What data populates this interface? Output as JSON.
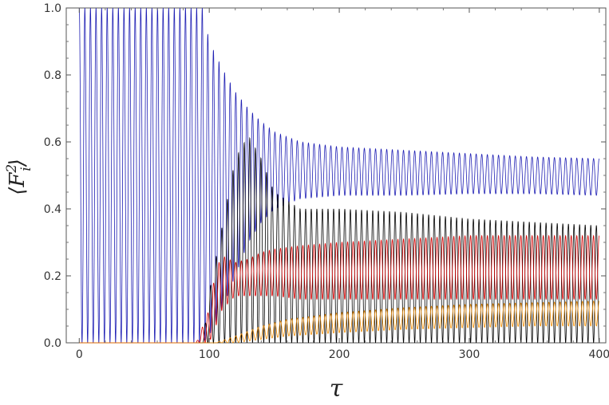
{
  "chart_data": {
    "type": "line",
    "xlabel": "τ",
    "ylabel": "⟨F_i^2⟩",
    "xlim": [
      -10,
      405
    ],
    "ylim": [
      0,
      1.0
    ],
    "x_ticks": [
      0,
      100,
      200,
      300,
      400
    ],
    "x_tick_labels": [
      "0",
      "100",
      "200",
      "300",
      "400"
    ],
    "y_ticks": [
      0,
      0.2,
      0.4,
      0.6,
      0.8,
      1.0
    ],
    "y_tick_labels": [
      "0.0",
      "0.2",
      "0.4",
      "0.6",
      "0.8",
      "1.0"
    ],
    "grid": false,
    "legend": "none",
    "oscillation_period": 4.3,
    "series": [
      {
        "color": "#1f1fb4",
        "envelope_x": [
          0,
          95,
          100,
          110,
          120,
          130,
          140,
          150,
          170,
          200,
          250,
          300,
          350,
          400
        ],
        "envelope_upper": [
          1.0,
          1.0,
          0.9,
          0.82,
          0.75,
          0.7,
          0.66,
          0.63,
          0.6,
          0.585,
          0.575,
          0.565,
          0.555,
          0.55
        ],
        "envelope_lower": [
          0.0,
          0.0,
          0.02,
          0.1,
          0.2,
          0.3,
          0.36,
          0.4,
          0.43,
          0.44,
          0.44,
          0.445,
          0.445,
          0.44
        ]
      },
      {
        "color": "#000000",
        "envelope_x": [
          0,
          95,
          100,
          110,
          120,
          130,
          140,
          150,
          170,
          200,
          250,
          300,
          350,
          400
        ],
        "envelope_upper": [
          0.0,
          0.0,
          0.15,
          0.35,
          0.55,
          0.62,
          0.55,
          0.45,
          0.4,
          0.4,
          0.39,
          0.37,
          0.36,
          0.35
        ],
        "envelope_lower": [
          0.0,
          0.0,
          0.0,
          0.0,
          0.0,
          0.0,
          0.0,
          0.0,
          0.0,
          0.0,
          0.0,
          0.0,
          0.0,
          0.0
        ]
      },
      {
        "color": "#d40000",
        "envelope_x": [
          0,
          90,
          100,
          105,
          110,
          120,
          130,
          140,
          150,
          170,
          200,
          250,
          300,
          350,
          400
        ],
        "envelope_upper": [
          0.0,
          0.0,
          0.1,
          0.22,
          0.26,
          0.24,
          0.25,
          0.27,
          0.28,
          0.29,
          0.3,
          0.31,
          0.32,
          0.32,
          0.32
        ],
        "envelope_lower": [
          0.0,
          0.0,
          0.0,
          0.05,
          0.1,
          0.14,
          0.14,
          0.14,
          0.14,
          0.13,
          0.13,
          0.13,
          0.13,
          0.13,
          0.13
        ]
      },
      {
        "color": "#f08c00",
        "envelope_x": [
          0,
          105,
          120,
          140,
          160,
          200,
          250,
          300,
          350,
          400
        ],
        "envelope_upper": [
          0.0,
          0.0,
          0.02,
          0.05,
          0.07,
          0.09,
          0.105,
          0.115,
          0.12,
          0.125
        ],
        "envelope_lower": [
          0.0,
          0.0,
          0.0,
          0.01,
          0.02,
          0.03,
          0.04,
          0.045,
          0.05,
          0.05
        ]
      }
    ]
  }
}
